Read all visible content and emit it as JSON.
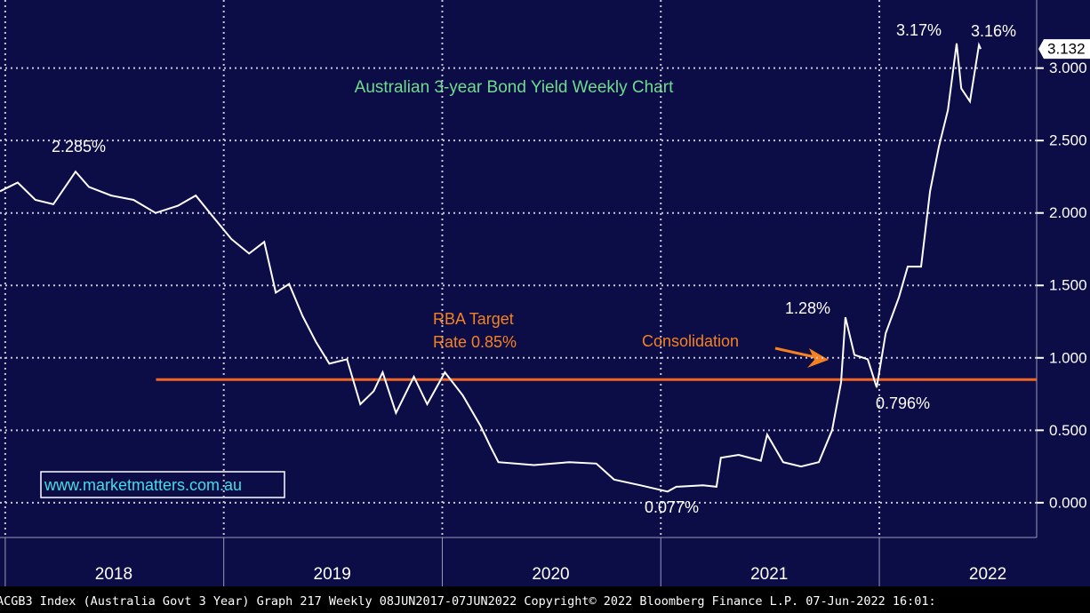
{
  "chart_data": {
    "type": "line",
    "title": "Australian 3-year Bond Yield Weekly Chart",
    "series": [
      {
        "name": "ACGB3 Index",
        "color": "#ffffff",
        "x": [
          2017.976,
          2018.057,
          2018.138,
          2018.22,
          2018.322,
          2018.383,
          2018.485,
          2018.587,
          2018.688,
          2018.79,
          2018.872,
          2018.953,
          2019.035,
          2019.116,
          2019.185,
          2019.238,
          2019.299,
          2019.36,
          2019.422,
          2019.483,
          2019.564,
          2019.625,
          2019.686,
          2019.727,
          2019.788,
          2019.87,
          2019.931,
          2020.012,
          2020.094,
          2020.175,
          2020.216,
          2020.257,
          2020.42,
          2020.582,
          2020.705,
          2020.786,
          2020.908,
          2021.031,
          2021.071,
          2021.193,
          2021.255,
          2021.275,
          2021.356,
          2021.458,
          2021.487,
          2021.56,
          2021.642,
          2021.723,
          2021.784,
          2021.825,
          2021.845,
          2021.886,
          2021.947,
          2021.988,
          2022.029,
          2022.09,
          2022.13,
          2022.191,
          2022.232,
          2022.273,
          2022.314,
          2022.354,
          2022.375,
          2022.415,
          2022.456,
          2022.464
        ],
        "values": [
          2.15,
          2.21,
          2.09,
          2.06,
          2.285,
          2.18,
          2.12,
          2.09,
          2.0,
          2.05,
          2.12,
          1.97,
          1.82,
          1.72,
          1.8,
          1.45,
          1.51,
          1.29,
          1.11,
          0.96,
          0.99,
          0.68,
          0.77,
          0.9,
          0.62,
          0.87,
          0.68,
          0.9,
          0.74,
          0.53,
          0.4,
          0.28,
          0.26,
          0.28,
          0.27,
          0.16,
          0.12,
          0.077,
          0.11,
          0.12,
          0.11,
          0.31,
          0.33,
          0.29,
          0.47,
          0.28,
          0.25,
          0.28,
          0.5,
          0.83,
          1.28,
          1.02,
          0.99,
          0.796,
          1.17,
          1.42,
          1.63,
          1.63,
          2.15,
          2.46,
          2.71,
          3.17,
          2.86,
          2.77,
          3.16,
          3.132
        ]
      }
    ],
    "last_value": 3.132,
    "xlim": [
      2017.976,
      2022.72
    ],
    "xticks": [
      {
        "value": 2018,
        "label": "2018"
      },
      {
        "value": 2019,
        "label": "2019"
      },
      {
        "value": 2020,
        "label": "2020"
      },
      {
        "value": 2021,
        "label": "2021"
      },
      {
        "value": 2022,
        "label": "2022"
      }
    ],
    "ylim": [
      -0.24,
      3.47
    ],
    "yticks": [
      {
        "value": 0,
        "label": "0.000"
      },
      {
        "value": 0.5,
        "label": "0.500"
      },
      {
        "value": 1,
        "label": "1.000"
      },
      {
        "value": 1.5,
        "label": "1.500"
      },
      {
        "value": 2,
        "label": "2.000"
      },
      {
        "value": 2.5,
        "label": "2.500"
      },
      {
        "value": 3,
        "label": "3.000"
      }
    ],
    "grid": true,
    "reference_line": {
      "value": 0.85,
      "x_start": 2018.69,
      "color": "#f26522"
    },
    "annotations": [
      "2.285%",
      "RBA Target",
      "Rate 0.85%",
      "Consolidation",
      "1.28%",
      "0.796%",
      "0.077%",
      "3.17%",
      "3.16%"
    ],
    "watermark": "www.marketmatters.com.au",
    "footer": "ACGB3 Index (Australia Govt 3 Year) Graph 217  Weekly 08JUN2017-07JUN2022  Copyright© 2022 Bloomberg Finance L.P.  07-Jun-2022 16:01:"
  }
}
